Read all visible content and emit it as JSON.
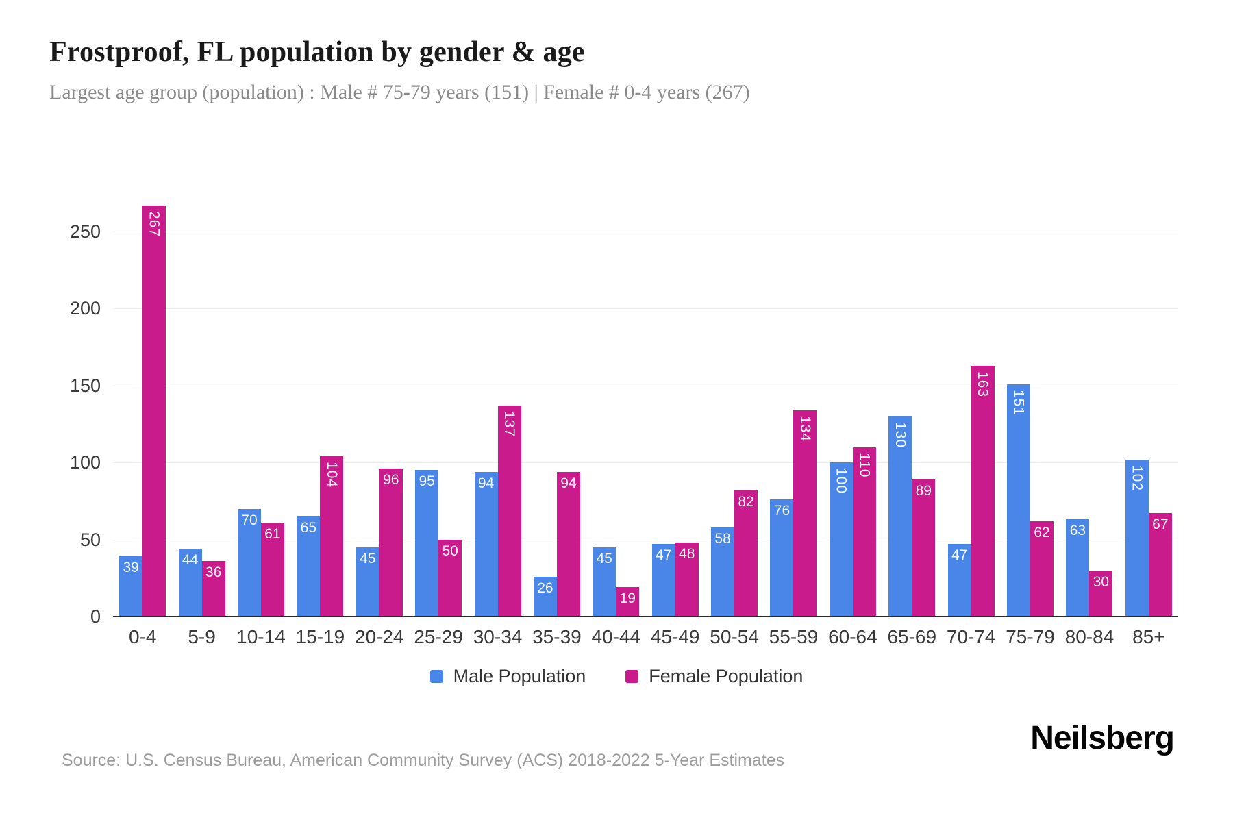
{
  "header": {
    "title": "Frostproof, FL population by gender & age",
    "subtitle": "Largest age group (population) : Male # 75-79 years (151) | Female # 0-4 years (267)"
  },
  "chart_data": {
    "type": "bar",
    "orientation": "vertical-grouped",
    "categories": [
      "0-4",
      "5-9",
      "10-14",
      "15-19",
      "20-24",
      "25-29",
      "30-34",
      "35-39",
      "40-44",
      "45-49",
      "50-54",
      "55-59",
      "60-64",
      "65-69",
      "70-74",
      "75-79",
      "80-84",
      "85+"
    ],
    "series": [
      {
        "name": "Male Population",
        "color": "#4a86e8",
        "values": [
          39,
          44,
          70,
          65,
          45,
          95,
          94,
          26,
          45,
          47,
          58,
          76,
          100,
          130,
          47,
          151,
          63,
          102
        ]
      },
      {
        "name": "Female Population",
        "color": "#ca1b8d",
        "values": [
          267,
          36,
          61,
          104,
          96,
          50,
          137,
          94,
          19,
          48,
          82,
          134,
          110,
          89,
          163,
          62,
          30,
          67
        ]
      }
    ],
    "title": "Frostproof, FL population by gender & age",
    "xlabel": "",
    "ylabel": "",
    "y_ticks": [
      0,
      50,
      100,
      150,
      200,
      250
    ],
    "ylim": [
      0,
      285
    ],
    "grid": "horizontal-light",
    "value_labels": "inside-top-white; three-digit values rotated vertical",
    "legend_position": "bottom"
  },
  "legend": {
    "male_label": "Male Population",
    "female_label": "Female Population"
  },
  "footer": {
    "source": "Source: U.S. Census Bureau, American Community Survey (ACS) 2018-2022 5-Year Estimates",
    "brand": "Neilsberg"
  }
}
